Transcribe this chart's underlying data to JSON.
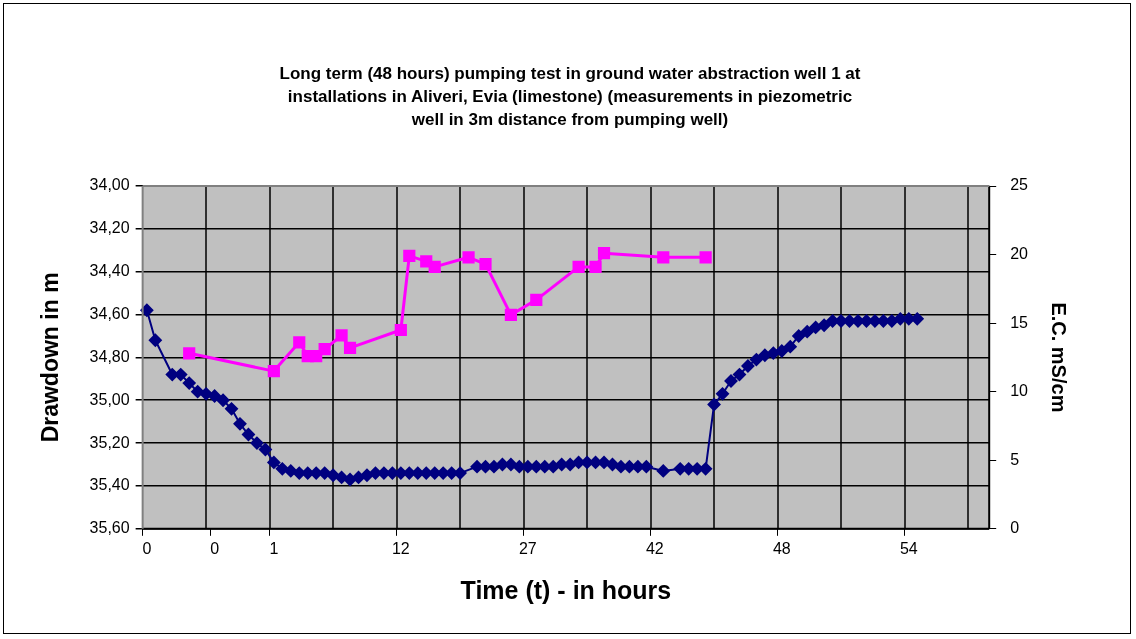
{
  "chart_data": {
    "type": "line",
    "title": "Long term (48 hours) pumping test in ground water abstraction well 1 at installations in Aliveri, Evia (limestone) (measurements in piezometric well in 3m distance from pumping well)",
    "xlabel": "Time (t) - in hours",
    "ylabel": "Drawdown in m",
    "y2label": "E.C. mS/cm",
    "categories": [
      "0",
      null,
      null,
      null,
      null,
      null,
      null,
      null,
      "0",
      null,
      null,
      null,
      null,
      null,
      null,
      "1",
      null,
      null,
      null,
      null,
      null,
      null,
      null,
      null,
      null,
      null,
      null,
      null,
      null,
      null,
      "12",
      null,
      null,
      null,
      null,
      null,
      null,
      null,
      null,
      null,
      null,
      null,
      null,
      null,
      null,
      "27",
      null,
      null,
      null,
      null,
      null,
      null,
      null,
      null,
      null,
      null,
      null,
      null,
      null,
      null,
      "42",
      null,
      null,
      null,
      null,
      null,
      null,
      null,
      null,
      null,
      null,
      null,
      null,
      null,
      null,
      "48",
      null,
      null,
      null,
      null,
      null,
      null,
      null,
      null,
      null,
      null,
      null,
      null,
      null,
      null,
      "54",
      null,
      null,
      null,
      null,
      null,
      null,
      null,
      null,
      null
    ],
    "series": [
      {
        "color": "#000080",
        "marker": "diamond",
        "values": [
          34.58,
          34.72,
          null,
          34.88,
          34.88,
          34.92,
          34.96,
          34.97,
          34.98,
          35.0,
          35.04,
          35.11,
          35.16,
          35.2,
          35.23,
          35.29,
          35.32,
          35.33,
          35.34,
          35.34,
          35.34,
          35.34,
          35.35,
          35.36,
          35.37,
          35.36,
          35.35,
          35.34,
          35.34,
          35.34,
          35.34,
          35.34,
          35.34,
          35.34,
          35.34,
          35.34,
          35.34,
          35.34,
          null,
          35.31,
          35.31,
          35.31,
          35.3,
          35.3,
          35.31,
          35.31,
          35.31,
          35.31,
          35.31,
          35.3,
          35.3,
          35.29,
          35.29,
          35.29,
          35.29,
          35.3,
          35.31,
          35.31,
          35.31,
          35.31,
          null,
          35.33,
          null,
          35.32,
          35.32,
          35.32,
          35.32,
          35.02,
          34.97,
          34.91,
          34.88,
          34.84,
          34.81,
          34.79,
          34.78,
          34.77,
          34.75,
          34.7,
          34.68,
          34.66,
          34.65,
          34.63,
          34.63,
          34.63,
          34.63,
          34.63,
          34.63,
          34.63,
          34.63,
          34.62,
          34.62,
          34.62,
          null,
          null,
          null,
          null,
          null,
          null,
          null,
          null
        ]
      },
      {
        "color": "#ff00ff",
        "marker": "square",
        "axis": "y2",
        "values": [
          null,
          null,
          null,
          null,
          null,
          12.8,
          null,
          null,
          null,
          null,
          null,
          null,
          null,
          null,
          null,
          11.5,
          null,
          null,
          13.6,
          12.6,
          12.6,
          13.1,
          null,
          14.1,
          13.2,
          null,
          null,
          null,
          null,
          null,
          14.5,
          19.9,
          null,
          19.5,
          19.1,
          null,
          null,
          null,
          19.8,
          null,
          19.3,
          null,
          null,
          15.6,
          null,
          null,
          16.7,
          null,
          null,
          null,
          null,
          19.1,
          null,
          19.1,
          20.1,
          null,
          null,
          null,
          null,
          null,
          null,
          19.8,
          null,
          null,
          null,
          null,
          19.8,
          null,
          null,
          null,
          null,
          null,
          null,
          null,
          null,
          null,
          null,
          null,
          null,
          null,
          null,
          null,
          null,
          null,
          null,
          null,
          null,
          null,
          null,
          null,
          null,
          null,
          null,
          null,
          null,
          null,
          null,
          null,
          null,
          null
        ]
      }
    ],
    "ylim": [
      35.6,
      34
    ],
    "yticks": [
      {
        "value": 34,
        "label": "34,00"
      },
      {
        "value": 34.2,
        "label": "34,20"
      },
      {
        "value": 34.4,
        "label": "34,40"
      },
      {
        "value": 34.6,
        "label": "34,60"
      },
      {
        "value": 34.8,
        "label": "34,80"
      },
      {
        "value": 35,
        "label": "35,00"
      },
      {
        "value": 35.2,
        "label": "35,20"
      },
      {
        "value": 35.4,
        "label": "35,40"
      },
      {
        "value": 35.6,
        "label": "35,60"
      }
    ],
    "y2lim": [
      0,
      25
    ],
    "y2ticks": [
      0,
      5,
      10,
      15,
      20,
      25
    ],
    "grid": true,
    "legend": false
  }
}
